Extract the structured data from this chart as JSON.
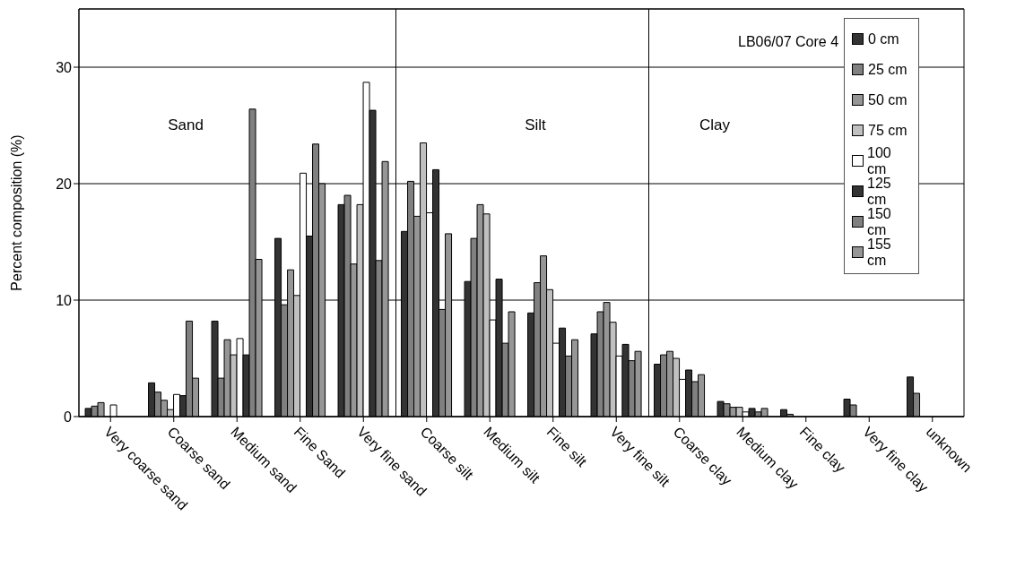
{
  "chart_data": {
    "type": "bar",
    "title": "LB06/07 Core 4",
    "ylabel": "Percent composition (%)",
    "categories": [
      "Very coarse sand",
      "Coarse sand",
      "Medium sand",
      "Fine Sand",
      "Very fine sand",
      "Coarse silt",
      "Medium silt",
      "Fine silt",
      "Very fine silt",
      "Coarse clay",
      "Medium clay",
      "Fine clay",
      "Very fine clay",
      "unknown"
    ],
    "series": [
      {
        "name": "0 cm",
        "color": "#333333",
        "values": [
          0.7,
          2.9,
          8.2,
          15.3,
          18.2,
          15.9,
          11.6,
          8.9,
          7.1,
          4.5,
          1.3,
          0.6,
          1.5,
          3.4
        ]
      },
      {
        "name": "25 cm",
        "color": "#808080",
        "values": [
          0.9,
          2.1,
          3.3,
          9.6,
          19.0,
          20.2,
          15.3,
          11.5,
          9.0,
          5.3,
          1.1,
          0.2,
          1.0,
          2.0
        ]
      },
      {
        "name": "50 cm",
        "color": "#969696",
        "values": [
          1.2,
          1.4,
          6.6,
          12.6,
          13.1,
          17.2,
          18.2,
          13.8,
          9.8,
          5.6,
          0.8,
          0,
          0,
          0
        ]
      },
      {
        "name": "75 cm",
        "color": "#c0c0c0",
        "values": [
          0,
          0.6,
          5.3,
          10.4,
          18.2,
          23.5,
          17.4,
          10.9,
          8.1,
          5.0,
          0.8,
          0,
          0,
          0
        ]
      },
      {
        "name": "100 cm",
        "color": "#ffffff",
        "values": [
          1.0,
          1.9,
          6.7,
          20.9,
          28.7,
          17.5,
          8.3,
          6.3,
          5.2,
          3.2,
          0.4,
          0,
          0,
          0
        ]
      },
      {
        "name": "125 cm",
        "color": "#333333",
        "values": [
          0,
          1.8,
          5.3,
          15.5,
          26.3,
          21.2,
          11.8,
          7.6,
          6.2,
          4.0,
          0.7,
          0,
          0,
          0
        ]
      },
      {
        "name": "150 cm",
        "color": "#808080",
        "values": [
          0,
          8.2,
          26.4,
          23.4,
          13.4,
          9.2,
          6.3,
          5.2,
          4.8,
          3.0,
          0.4,
          0,
          0,
          0
        ]
      },
      {
        "name": "155 cm",
        "color": "#969696",
        "values": [
          0,
          3.3,
          13.5,
          20.0,
          21.9,
          15.7,
          9.0,
          6.6,
          5.6,
          3.6,
          0.7,
          0,
          0,
          0
        ]
      }
    ],
    "annotations": [
      "Sand",
      "Silt",
      "Clay"
    ],
    "ylim": [
      0,
      35
    ],
    "yticks": [
      0,
      10,
      20,
      30
    ],
    "grid": "y",
    "legend": "top right"
  }
}
